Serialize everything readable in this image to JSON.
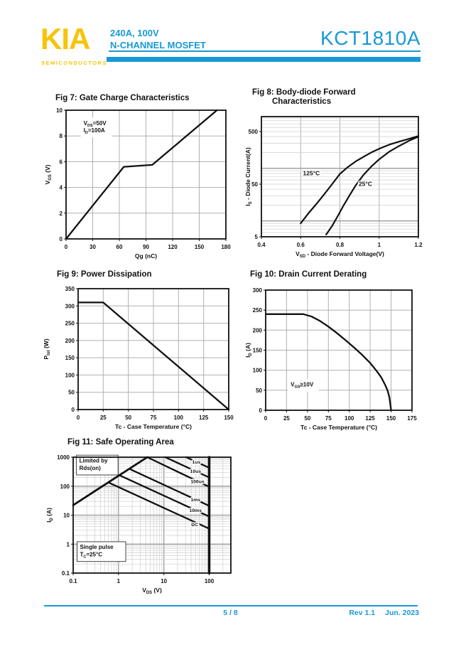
{
  "header": {
    "logo": "KIA",
    "logo_sub": "SEMICONDUCTORS",
    "subtitle_line1": "240A, 100V",
    "subtitle_line2": "N-CHANNEL MOSFET",
    "part_number": "KCT1810A",
    "accent_color": "#1899d6",
    "logo_color": "#f6c40a"
  },
  "footer": {
    "page": "5 / 8",
    "rev": "Rev 1.1",
    "date": "Jun. 2023"
  },
  "chart_data": [
    {
      "id": "fig7",
      "type": "line",
      "title": "Fig 7: Gate Charge Characteristics",
      "xlabel": "Qg (nC)",
      "ylabel": "V~GS~ (V)",
      "xscale": "linear",
      "yscale": "linear",
      "xlim": [
        0,
        180
      ],
      "ylim": [
        0,
        10
      ],
      "xticks": [
        0,
        30,
        60,
        90,
        120,
        150,
        180
      ],
      "yticks": [
        0,
        2,
        4,
        6,
        8,
        10
      ],
      "grid": "on",
      "legend": "none",
      "series": [
        {
          "name": "gate-charge",
          "width": 2.3,
          "points": [
            [
              0,
              0
            ],
            [
              65,
              5.6
            ],
            [
              97,
              5.75
            ],
            [
              170,
              10
            ]
          ]
        }
      ],
      "annotations": [
        {
          "text": "V~DS~=50V\nI~D~=100A",
          "x": 34,
          "y": 8.65,
          "box": false,
          "size": 8
        }
      ],
      "curve_labels": []
    },
    {
      "id": "fig8",
      "type": "line",
      "title": "Fig 8: Body-diode Forward",
      "title2": "Characteristics",
      "xlabel": "V~SD~ - Diode Forward Voltage(V)",
      "ylabel": "I~S~ - Diode Current(A)",
      "xscale": "linear",
      "yscale": "log",
      "xlim": [
        0.4,
        1.2
      ],
      "ylim": [
        5,
        960
      ],
      "xticks": [
        0.4,
        0.6,
        0.8,
        1,
        1.2
      ],
      "yticks": [
        5,
        50,
        500
      ],
      "grid": "on",
      "legend": "none",
      "series": [
        {
          "name": "125C",
          "width": 2.2,
          "points": [
            [
              0.6,
              9
            ],
            [
              0.64,
              14
            ],
            [
              0.68,
              21
            ],
            [
              0.72,
              32
            ],
            [
              0.76,
              50
            ],
            [
              0.8,
              78
            ],
            [
              0.84,
              105
            ],
            [
              0.88,
              135
            ],
            [
              0.92,
              165
            ],
            [
              0.96,
              200
            ],
            [
              1.0,
              235
            ],
            [
              1.05,
              280
            ],
            [
              1.1,
              320
            ],
            [
              1.15,
              362
            ],
            [
              1.2,
              410
            ]
          ]
        },
        {
          "name": "25C",
          "width": 2.2,
          "points": [
            [
              0.73,
              5.5
            ],
            [
              0.76,
              8
            ],
            [
              0.79,
              12.5
            ],
            [
              0.82,
              20
            ],
            [
              0.85,
              31
            ],
            [
              0.88,
              47
            ],
            [
              0.92,
              75
            ],
            [
              0.96,
              108
            ],
            [
              1.0,
              148
            ],
            [
              1.05,
              205
            ],
            [
              1.1,
              263
            ],
            [
              1.15,
              330
            ],
            [
              1.2,
              398
            ]
          ]
        }
      ],
      "annotations": [],
      "curve_labels": [
        {
          "text": "125°C",
          "x": 0.655,
          "y": 80,
          "size": 8.5
        },
        {
          "text": "25°C",
          "x": 0.93,
          "y": 50,
          "size": 8.5
        }
      ]
    },
    {
      "id": "fig9",
      "type": "line",
      "title": "Fig 9: Power Dissipation",
      "xlabel": "Tc - Case Temperature (°C)",
      "ylabel": "P~tot~ (W)",
      "xscale": "linear",
      "yscale": "linear",
      "xlim": [
        0,
        150
      ],
      "ylim": [
        0,
        350
      ],
      "xticks": [
        0,
        25,
        50,
        75,
        100,
        125,
        150
      ],
      "yticks": [
        0,
        50,
        100,
        150,
        200,
        250,
        300,
        350
      ],
      "grid": "on",
      "legend": "none",
      "series": [
        {
          "name": "power-dissipation",
          "width": 2.3,
          "points": [
            [
              0,
              310
            ],
            [
              25,
              310
            ],
            [
              150,
              0
            ]
          ]
        }
      ],
      "annotations": [],
      "curve_labels": []
    },
    {
      "id": "fig10",
      "type": "line",
      "title": "Fig 10: Drain Current Derating",
      "xlabel": "Tc - Case Temperature (°C)",
      "ylabel": "I~D~ (A)",
      "xscale": "linear",
      "yscale": "linear",
      "xlim": [
        0,
        175
      ],
      "ylim": [
        0,
        300
      ],
      "xticks": [
        0,
        25,
        50,
        75,
        100,
        125,
        150,
        175
      ],
      "yticks": [
        0,
        50,
        100,
        150,
        200,
        250,
        300
      ],
      "grid": "on",
      "legend": "none",
      "series": [
        {
          "name": "drain-current-derating",
          "width": 2.3,
          "points": [
            [
              0,
              240
            ],
            [
              45,
              240
            ],
            [
              55,
              234
            ],
            [
              65,
              223
            ],
            [
              75,
              209
            ],
            [
              85,
              193
            ],
            [
              95,
              176
            ],
            [
              105,
              158
            ],
            [
              115,
              139
            ],
            [
              125,
              118
            ],
            [
              132,
              100
            ],
            [
              138,
              83
            ],
            [
              143,
              63
            ],
            [
              146,
              48
            ],
            [
              148,
              32
            ],
            [
              150,
              0
            ]
          ]
        }
      ],
      "annotations": [
        {
          "text": "V~GS~≥10V",
          "x": 45,
          "y": 62,
          "box": false,
          "size": 8
        }
      ],
      "curve_labels": []
    },
    {
      "id": "fig11",
      "type": "line",
      "title": "Fig 11: Safe Operating Area",
      "xlabel": "V~DS~ (V)",
      "ylabel": "I~D~ (A)",
      "xscale": "log",
      "yscale": "log",
      "xlim": [
        0.1,
        300
      ],
      "ylim": [
        0.1,
        1000
      ],
      "xticks": [
        0.1,
        1,
        10,
        100
      ],
      "yticks": [
        0.1,
        1,
        10,
        100,
        1000
      ],
      "grid": "on",
      "legend": "none",
      "series": [
        {
          "name": "rdson-limit",
          "width": 2.8,
          "points": [
            [
              0.1,
              22
            ],
            [
              4.3,
              1000
            ]
          ]
        },
        {
          "name": "1us",
          "width": 2.3,
          "points": [
            [
              31,
              1000
            ],
            [
              100,
              430
            ]
          ]
        },
        {
          "name": "10us",
          "width": 2.3,
          "points": [
            [
              10.7,
              1000
            ],
            [
              100,
              200
            ]
          ]
        },
        {
          "name": "100us",
          "width": 2.3,
          "points": [
            [
              4.3,
              1000
            ],
            [
              100,
              95
            ]
          ]
        },
        {
          "name": "1ms",
          "width": 2.3,
          "points": [
            [
              1.77,
              390
            ],
            [
              100,
              21
            ]
          ]
        },
        {
          "name": "10ms",
          "width": 2.3,
          "points": [
            [
              1.06,
              235
            ],
            [
              100,
              9
            ]
          ]
        },
        {
          "name": "dc",
          "width": 2.3,
          "points": [
            [
              0.6,
              134
            ],
            [
              100,
              3.4
            ]
          ]
        },
        {
          "name": "vds-max-line",
          "width": 3.5,
          "points": [
            [
              100,
              0.1
            ],
            [
              100,
              1000
            ]
          ]
        }
      ],
      "annotations": [
        {
          "text": "Limited by\nRds(on)",
          "x": 0.34,
          "y": 535,
          "box": true,
          "size": 8
        },
        {
          "text": "Single pulse\nT~C~=25°C",
          "x": 0.42,
          "y": 0.55,
          "box": true,
          "size": 8
        }
      ],
      "curve_labels": [
        {
          "text": "1us",
          "x": 52,
          "y": 690,
          "size": 6.8
        },
        {
          "text": "10us",
          "x": 50,
          "y": 330,
          "size": 6.8
        },
        {
          "text": "100us",
          "x": 55,
          "y": 148,
          "size": 6.8
        },
        {
          "text": "1ms",
          "x": 50,
          "y": 35,
          "size": 6.8
        },
        {
          "text": "10ms",
          "x": 50,
          "y": 15,
          "size": 6.8
        },
        {
          "text": "DC",
          "x": 48,
          "y": 4.8,
          "size": 6.8
        }
      ]
    }
  ]
}
